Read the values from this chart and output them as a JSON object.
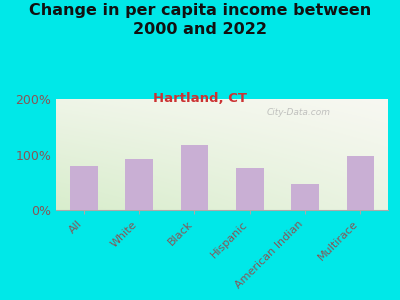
{
  "title": "Change in per capita income between\n2000 and 2022",
  "subtitle": "Hartland, CT",
  "categories": [
    "All",
    "White",
    "Black",
    "Hispanic",
    "American Indian",
    "Multirace"
  ],
  "values": [
    80,
    92,
    118,
    75,
    47,
    97
  ],
  "bar_color": "#c9afd4",
  "background_outer": "#00e8e8",
  "background_inner_top_left": "#ddeedd",
  "background_inner_bottom_right": "#f8f8f4",
  "title_fontsize": 11.5,
  "subtitle_fontsize": 9.5,
  "subtitle_color": "#cc3333",
  "title_color": "#111111",
  "ylabel_ticks": [
    "0%",
    "100%",
    "200%"
  ],
  "ytick_values": [
    0,
    100,
    200
  ],
  "ylim": [
    0,
    200
  ],
  "watermark": "City-Data.com",
  "tick_label_color": "#885555",
  "tick_label_fontsize": 8,
  "ytick_label_fontsize": 9
}
